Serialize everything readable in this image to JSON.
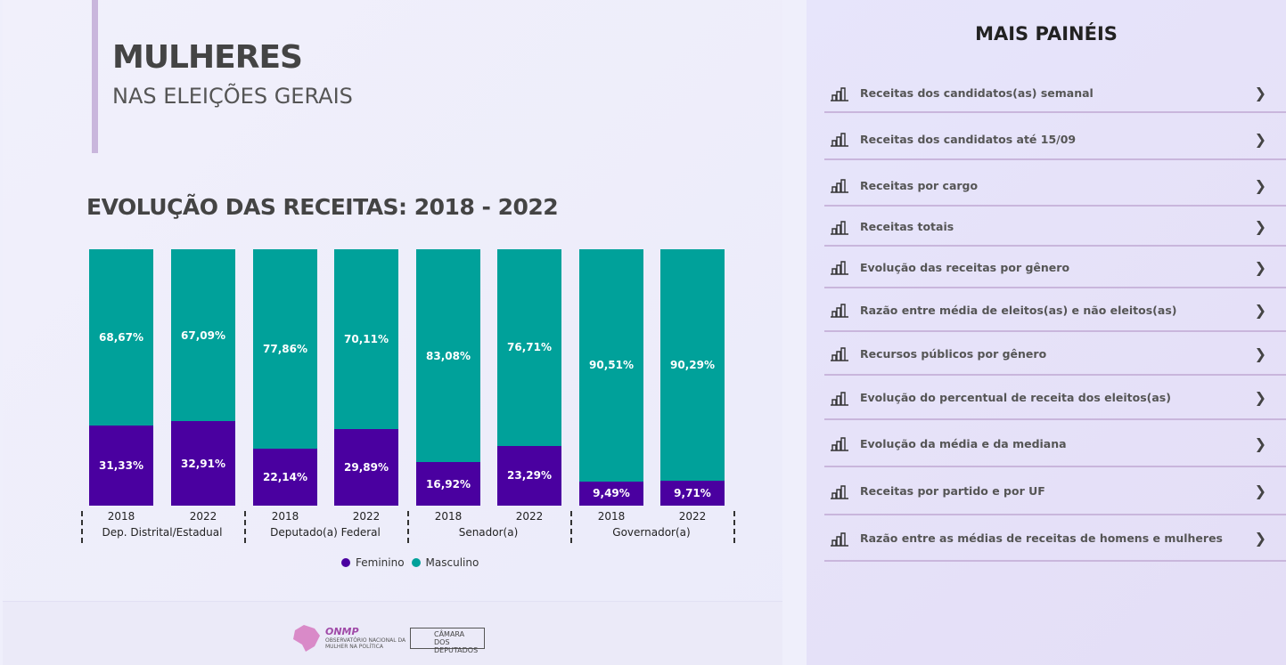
{
  "header": {
    "title": "MULHERES",
    "subtitle": "NAS ELEIÇÕES GERAIS"
  },
  "chart_data": {
    "type": "bar",
    "stacked": true,
    "title": "EVOLUÇÃO DAS RECEITAS: 2018 - 2022",
    "groups": [
      "Dep. Distrital/Estadual",
      "Deputado(a) Federal",
      "Senador(a)",
      "Governador(a)"
    ],
    "categories": [
      "2018",
      "2022",
      "2018",
      "2022",
      "2018",
      "2022",
      "2018",
      "2022"
    ],
    "series": [
      {
        "name": "Feminino",
        "color": "#4a00a0",
        "labels": [
          "31,33%",
          "32,91%",
          "22,14%",
          "29,89%",
          "16,92%",
          "23,29%",
          "9,49%",
          "9,71%"
        ],
        "values": [
          31.33,
          32.91,
          22.14,
          29.89,
          16.92,
          23.29,
          9.49,
          9.71
        ]
      },
      {
        "name": "Masculino",
        "color": "#00a19a",
        "labels": [
          "68,67%",
          "67,09%",
          "77,86%",
          "70,11%",
          "83,08%",
          "76,71%",
          "90,51%",
          "90,29%"
        ],
        "values": [
          68.67,
          67.09,
          77.86,
          70.11,
          83.08,
          76.71,
          90.51,
          90.29
        ]
      }
    ],
    "ylim": [
      0,
      100
    ],
    "legend": "bottom"
  },
  "footer": {
    "logo1_abbr": "ONMP",
    "logo1_text": "OBSERVATÓRIO NACIONAL DA MULHER NA POLÍTICA",
    "logo2_text": "CÂMARA DOS DEPUTADOS"
  },
  "panel": {
    "title": "MAIS PAINÉIS",
    "items": [
      "Receitas dos candidatos(as) semanal",
      "Receitas dos candidatos até 15/09",
      "Receitas por cargo",
      " Receitas totais",
      "Evolução das receitas por gênero",
      "Razão entre média de eleitos(as) e não eleitos(as)",
      "Recursos públicos por gênero",
      "Evolução do percentual de receita dos eleitos(as)",
      "Evolução da média e da mediana",
      "Receitas por partido e por UF",
      "Razão entre as médias de receitas de homens e mulheres"
    ]
  }
}
